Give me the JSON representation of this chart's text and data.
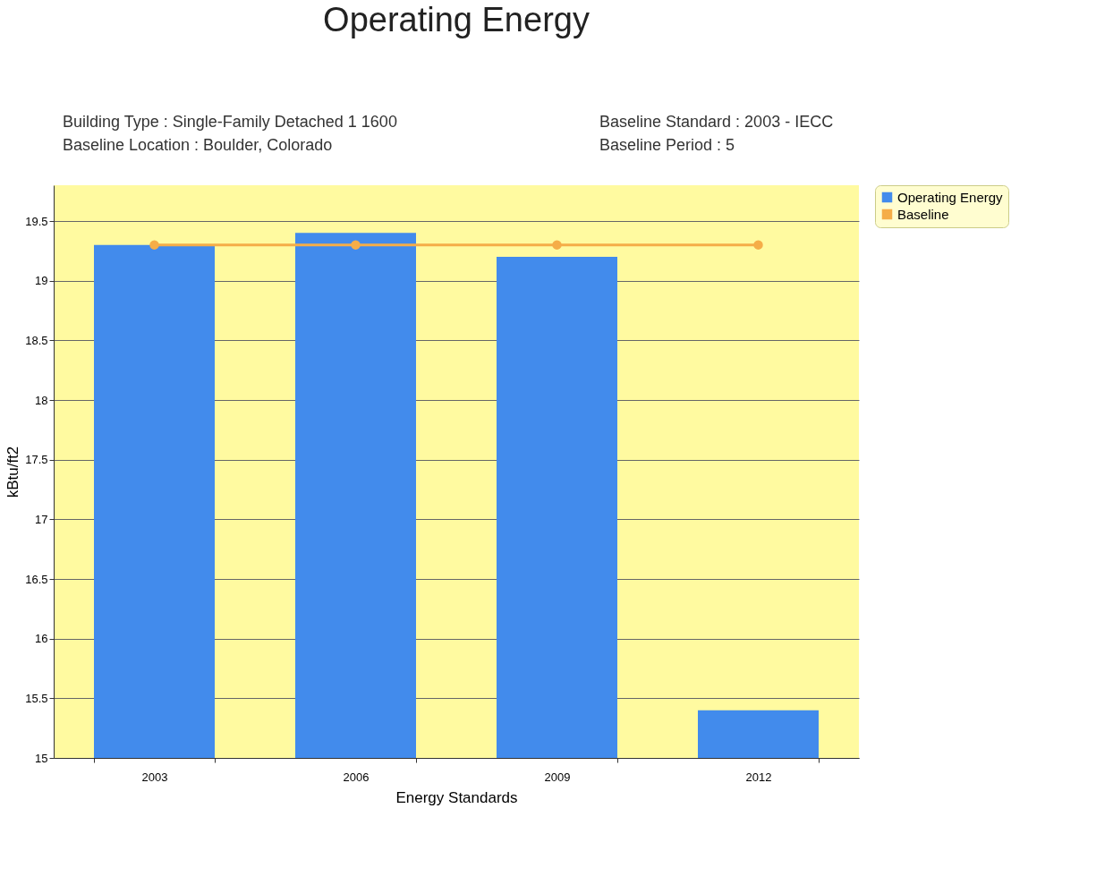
{
  "chart_data": {
    "type": "bar",
    "title": "Operating Energy",
    "annotations": [
      "Building Type : Single-Family Detached 1 1600",
      "Baseline Standard : 2003 - IECC",
      "Baseline Location : Boulder, Colorado",
      "Baseline Period : 5"
    ],
    "xlabel": "Energy Standards",
    "ylabel": "kBtu/ft2",
    "categories": [
      "2003",
      "2006",
      "2009",
      "2012"
    ],
    "series": [
      {
        "name": "Operating Energy",
        "color": "#428bec",
        "values": [
          19.3,
          19.4,
          19.2,
          15.4
        ]
      },
      {
        "name": "Baseline",
        "type": "line",
        "color": "#f5ad48",
        "values": [
          19.3,
          19.3,
          19.3,
          19.3
        ]
      }
    ],
    "ylim": [
      15,
      19.8
    ],
    "yticks": [
      15,
      15.5,
      16,
      16.5,
      17,
      17.5,
      18,
      18.5,
      19,
      19.5
    ],
    "grid": "y",
    "legend": "right",
    "marker": "circle"
  }
}
